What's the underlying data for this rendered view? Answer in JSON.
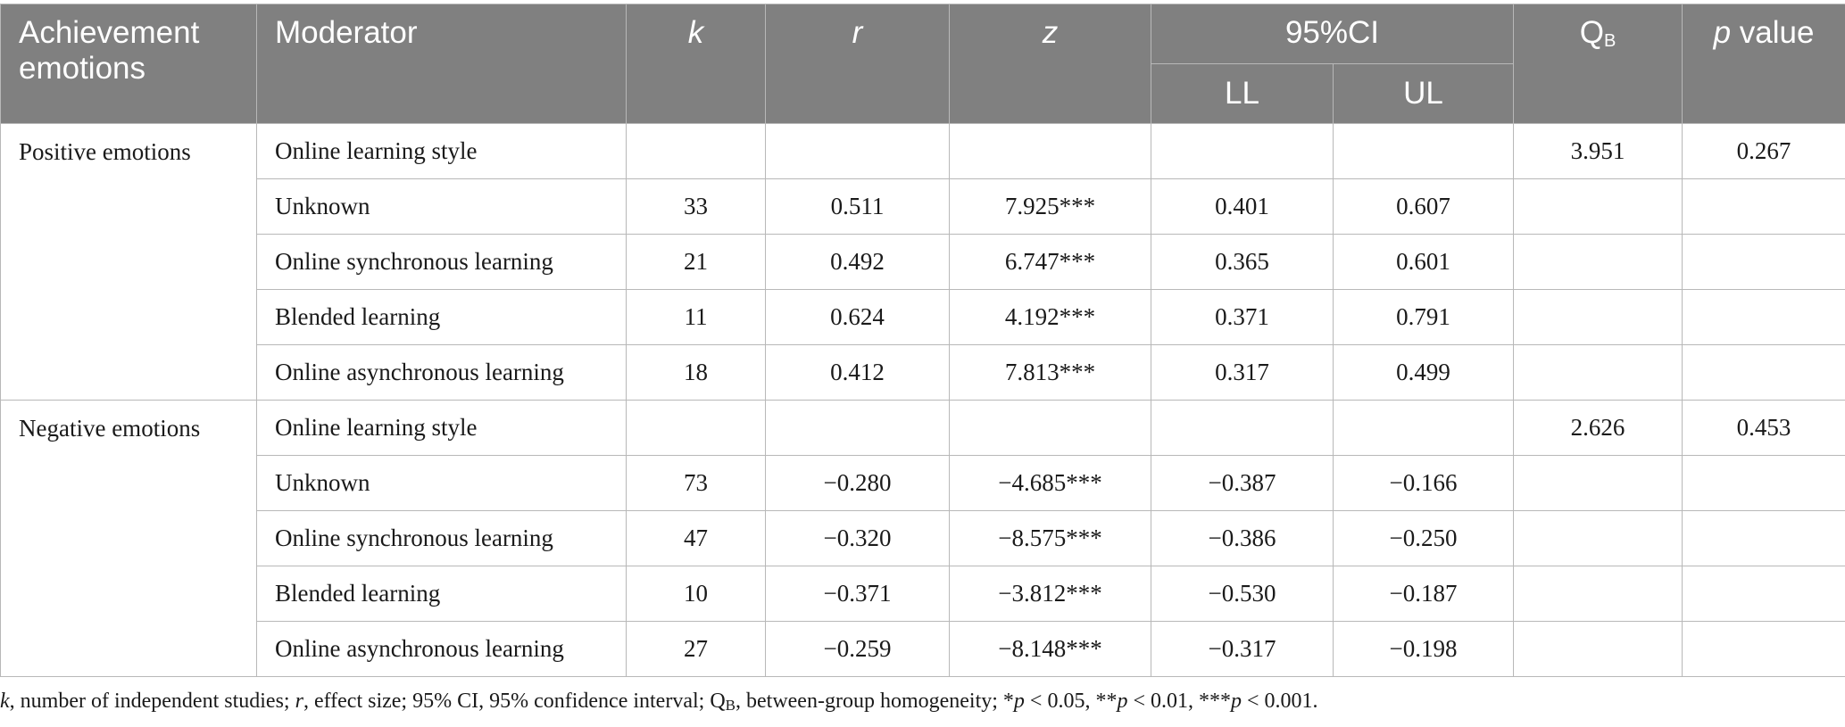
{
  "header": {
    "achievement_emotions": "Achievement emotions",
    "moderator": "Moderator",
    "k": "k",
    "r": "r",
    "z": "z",
    "ci": "95%CI",
    "ll": "LL",
    "ul": "UL",
    "qb_main": "Q",
    "qb_sub": "B",
    "p_italic": "p",
    "p_rest": " value"
  },
  "groups": [
    {
      "name": "Positive emotions",
      "rows": [
        {
          "moderator": "Online learning style",
          "k": "",
          "r": "",
          "z": "",
          "ll": "",
          "ul": "",
          "qb": "3.951",
          "p": "0.267"
        },
        {
          "moderator": "Unknown",
          "k": "33",
          "r": "0.511",
          "z": "7.925***",
          "ll": "0.401",
          "ul": "0.607",
          "qb": "",
          "p": ""
        },
        {
          "moderator": "Online synchronous learning",
          "k": "21",
          "r": "0.492",
          "z": "6.747***",
          "ll": "0.365",
          "ul": "0.601",
          "qb": "",
          "p": ""
        },
        {
          "moderator": "Blended learning",
          "k": "11",
          "r": "0.624",
          "z": "4.192***",
          "ll": "0.371",
          "ul": "0.791",
          "qb": "",
          "p": ""
        },
        {
          "moderator": "Online asynchronous learning",
          "k": "18",
          "r": "0.412",
          "z": "7.813***",
          "ll": "0.317",
          "ul": "0.499",
          "qb": "",
          "p": ""
        }
      ]
    },
    {
      "name": "Negative emotions",
      "rows": [
        {
          "moderator": "Online learning style",
          "k": "",
          "r": "",
          "z": "",
          "ll": "",
          "ul": "",
          "qb": "2.626",
          "p": "0.453"
        },
        {
          "moderator": "Unknown",
          "k": "73",
          "r": "−0.280",
          "z": "−4.685***",
          "ll": "−0.387",
          "ul": "−0.166",
          "qb": "",
          "p": ""
        },
        {
          "moderator": "Online synchronous learning",
          "k": "47",
          "r": "−0.320",
          "z": "−8.575***",
          "ll": "−0.386",
          "ul": "−0.250",
          "qb": "",
          "p": ""
        },
        {
          "moderator": "Blended learning",
          "k": "10",
          "r": "−0.371",
          "z": "−3.812***",
          "ll": "−0.530",
          "ul": "−0.187",
          "qb": "",
          "p": ""
        },
        {
          "moderator": "Online asynchronous learning",
          "k": "27",
          "r": "−0.259",
          "z": "−8.148***",
          "ll": "−0.317",
          "ul": "−0.198",
          "qb": "",
          "p": ""
        }
      ]
    }
  ],
  "footnote": {
    "k_sym": "k",
    "k_def": ", number of independent studies; ",
    "r_sym": "r",
    "r_def": ", effect size; 95% CI, 95% confidence interval; Q",
    "qb_sub": "B",
    "qb_def": ", between-group homogeneity; *",
    "p1": "p",
    "p1_def": " < 0.05, **",
    "p2": "p",
    "p2_def": " < 0.01, ***",
    "p3": "p",
    "p3_def": " < 0.001."
  }
}
